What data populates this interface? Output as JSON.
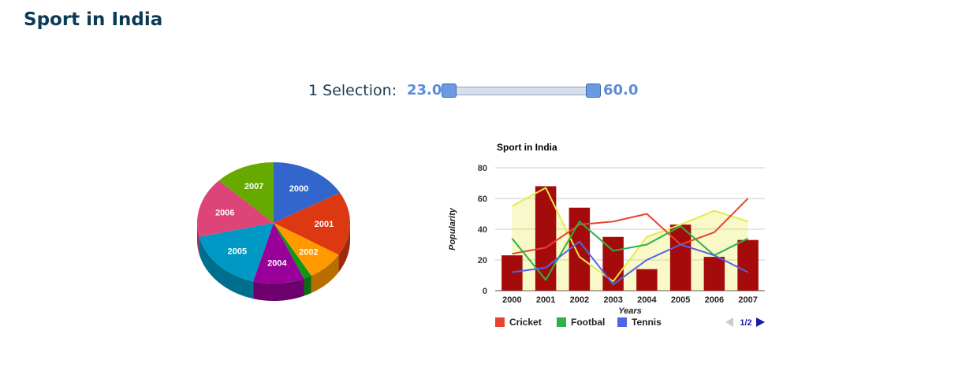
{
  "page": {
    "title": "Sport in India"
  },
  "selection": {
    "label": "1 Selection:",
    "min": "23.0",
    "max": "60.0"
  },
  "chart_data": [
    {
      "type": "pie",
      "style": "3d",
      "categories": [
        "2000",
        "2001",
        "2002",
        "2003",
        "2004",
        "2005",
        "2006",
        "2007"
      ],
      "values": [
        16.7,
        17.1,
        8.0,
        1.7,
        10.8,
        17.0,
        16.0,
        12.7
      ],
      "colors": [
        "#3366cc",
        "#dc3912",
        "#ff9900",
        "#109618",
        "#990099",
        "#0099c6",
        "#dd4477",
        "#66aa00"
      ]
    },
    {
      "type": "bar",
      "title": "Sport in India",
      "xlabel": "Years",
      "ylabel": "Popularity",
      "categories": [
        "2000",
        "2001",
        "2002",
        "2003",
        "2004",
        "2005",
        "2006",
        "2007"
      ],
      "ylim": [
        0,
        80
      ],
      "yticks": [
        0,
        20,
        40,
        60,
        80
      ],
      "grid": true,
      "bars": {
        "color": "#a50b0b",
        "values": [
          23,
          68,
          54,
          35,
          14,
          43,
          22,
          33
        ]
      },
      "area": {
        "color": "#e9e94a",
        "values": [
          55,
          67,
          22,
          6,
          35,
          43,
          52,
          45
        ]
      },
      "series": [
        {
          "name": "Cricket",
          "color": "#e8432f",
          "values": [
            24,
            28,
            43,
            45,
            50,
            30,
            38,
            60
          ]
        },
        {
          "name": "Footbal",
          "color": "#2eb244",
          "values": [
            34,
            7,
            45,
            26,
            30,
            42,
            23,
            34
          ]
        },
        {
          "name": "Tennis",
          "color": "#5065e6",
          "values": [
            12,
            15,
            32,
            4,
            20,
            30,
            23,
            12
          ]
        }
      ],
      "legend": {
        "position": "bottom",
        "page": "1/2"
      }
    }
  ]
}
